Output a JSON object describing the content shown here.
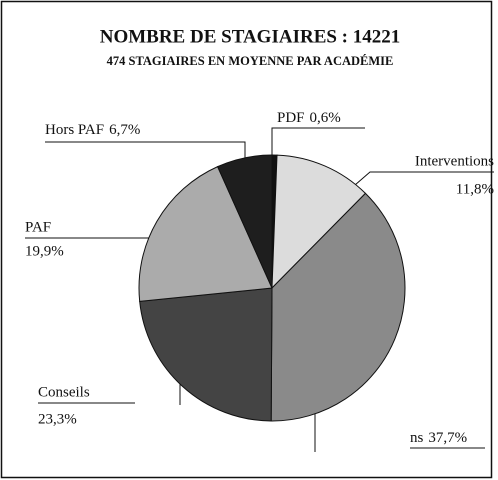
{
  "chart_data": {
    "type": "pie",
    "title": "NOMBRE DE STAGIAIRES : 14221",
    "subtitle": "474 STAGIAIRES EN MOYENNE PAR ACADÉMIE",
    "categories": [
      "PDF",
      "Interventions",
      "ns",
      "Conseils",
      "PAF",
      "Hors PAF"
    ],
    "values": [
      0.6,
      11.8,
      37.7,
      23.3,
      19.9,
      6.7
    ],
    "value_labels": [
      "0,6%",
      "11,8%",
      "37,7%",
      "23,3%",
      "19,9%",
      "6,7%"
    ],
    "colors": [
      "#111111",
      "#dcdcdc",
      "#8a8a8a",
      "#444444",
      "#ababab",
      "#1e1e1e"
    ]
  }
}
